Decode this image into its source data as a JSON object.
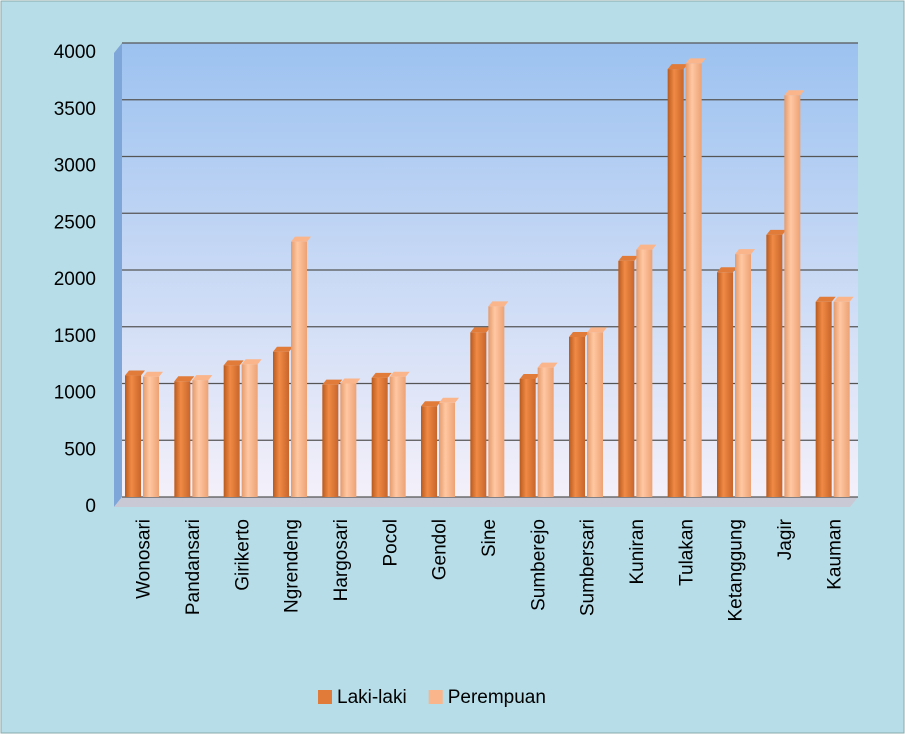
{
  "chart_data": {
    "type": "bar",
    "categories": [
      "Wonosari",
      "Pandansari",
      "Girikerto",
      "Ngrendeng",
      "Hargosari",
      "Pocol",
      "Gendol",
      "Sine",
      "Sumberejo",
      "Sumbersari",
      "Kuniran",
      "Tulakan",
      "Ketanggung",
      "Jagir",
      "Kauman"
    ],
    "series": [
      {
        "name": "Laki-laki",
        "color": "#e07b39",
        "values": [
          1070,
          1020,
          1160,
          1280,
          990,
          1050,
          800,
          1450,
          1040,
          1410,
          2080,
          3770,
          1980,
          2310,
          1720
        ]
      },
      {
        "name": "Perempuan",
        "color": "#fbb58a",
        "values": [
          1060,
          1030,
          1170,
          2250,
          1000,
          1060,
          830,
          1680,
          1140,
          1450,
          2180,
          3820,
          2140,
          3540,
          1720
        ]
      }
    ],
    "ylim": [
      0,
      4000
    ],
    "yticks": [
      0,
      500,
      1000,
      1500,
      2000,
      2500,
      3000,
      3500,
      4000
    ],
    "grid": true,
    "legend": "bottom"
  }
}
